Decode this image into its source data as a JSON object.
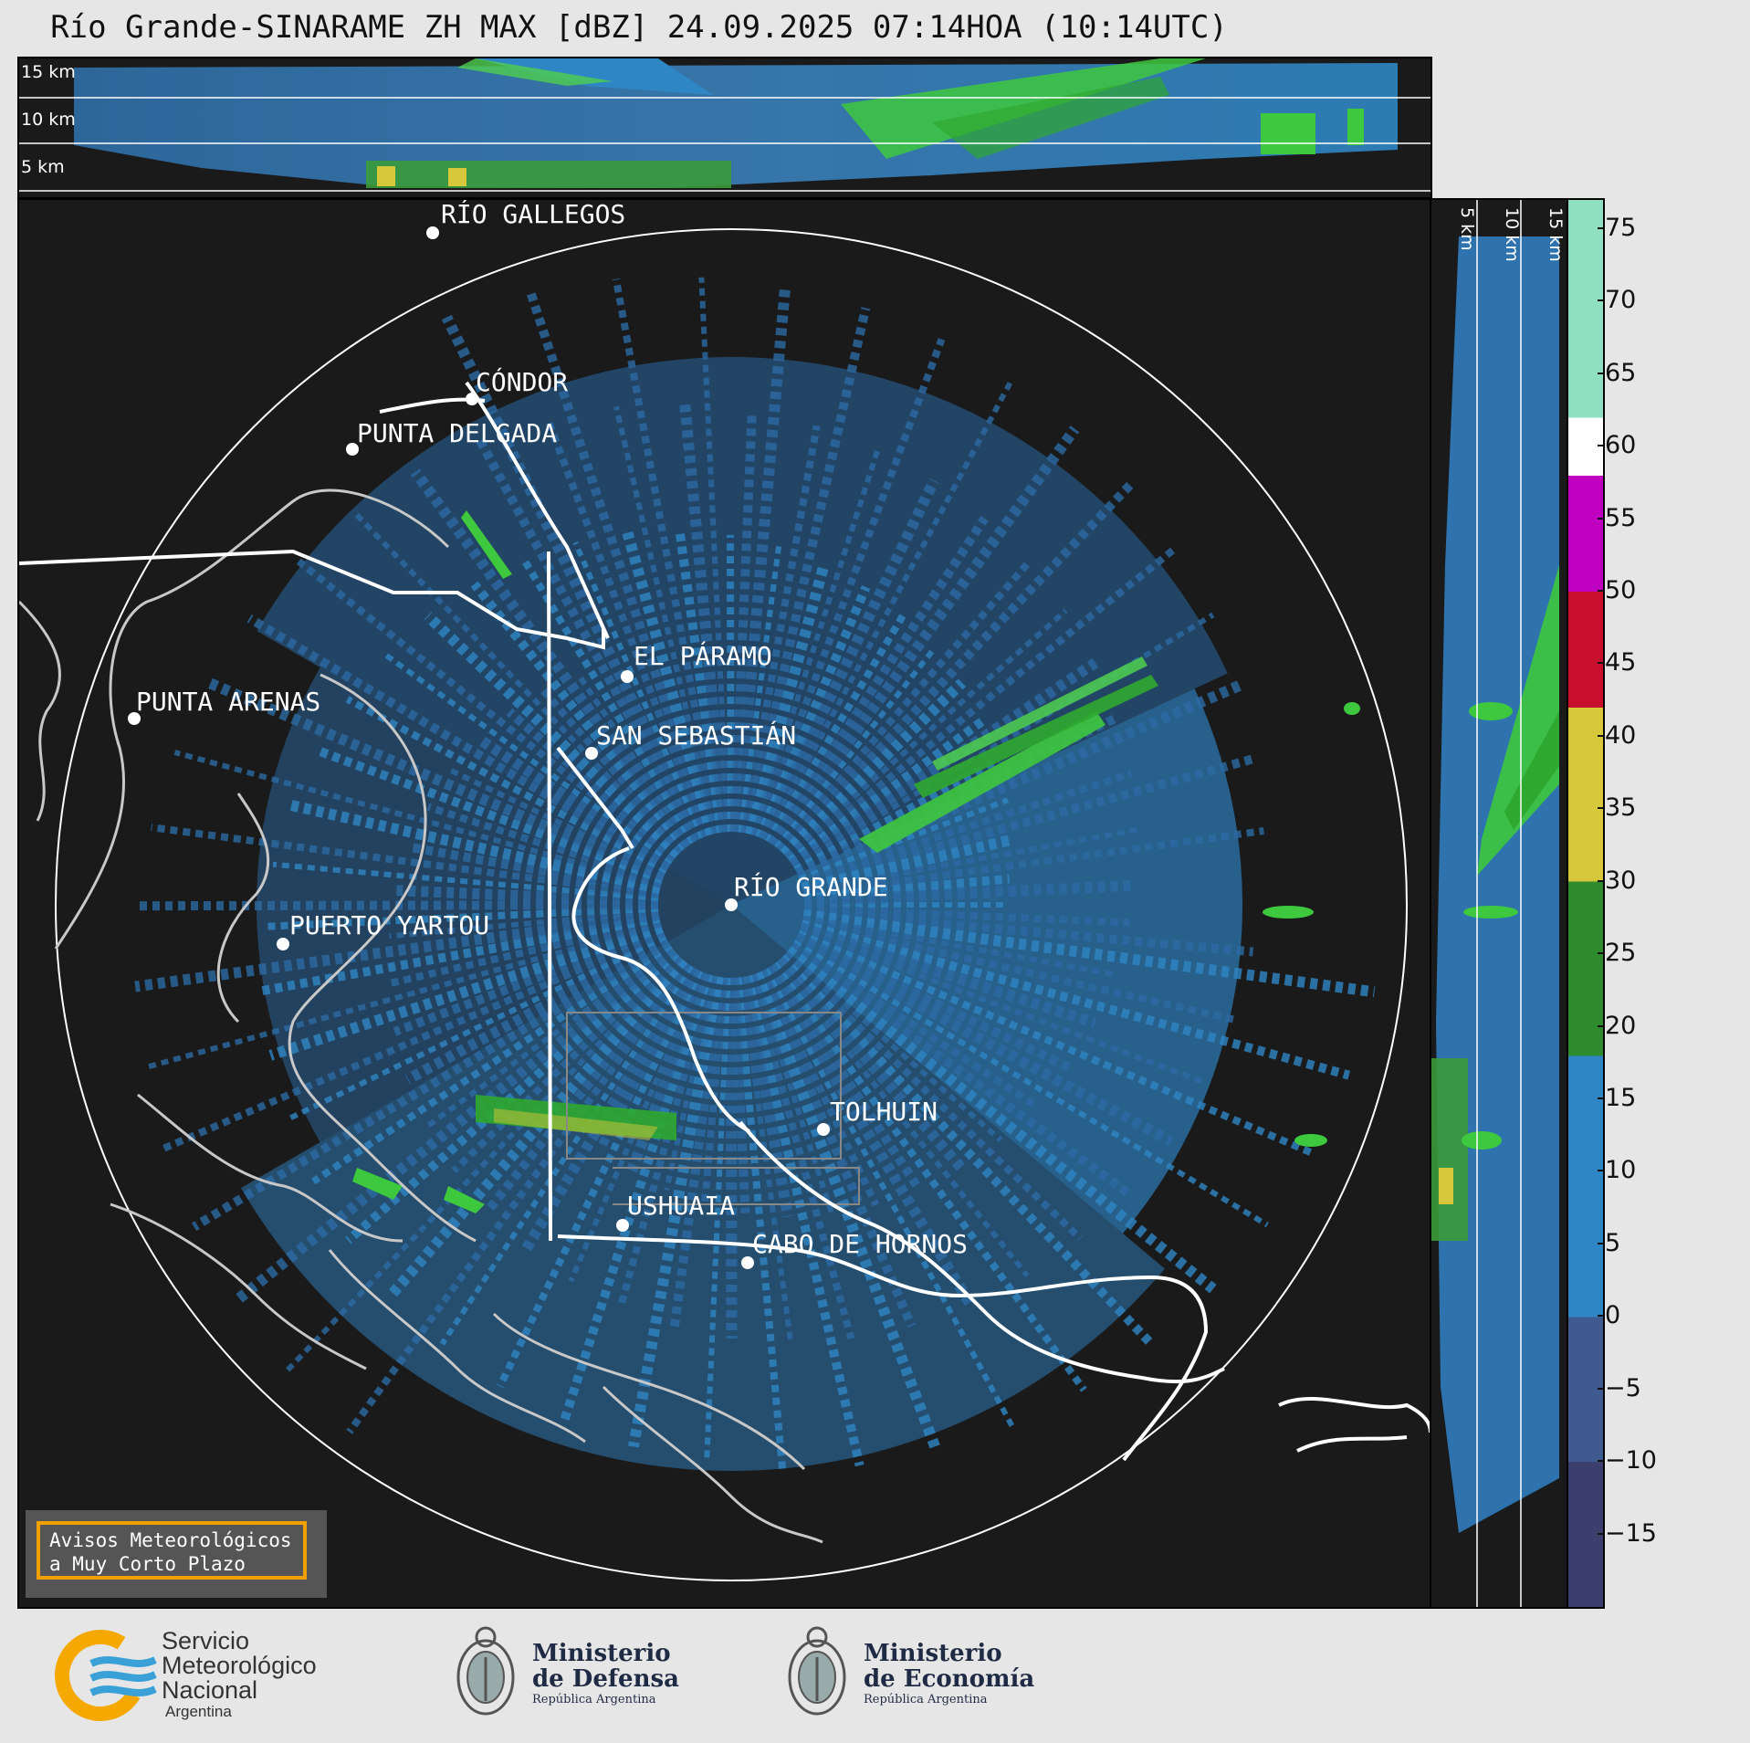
{
  "title": "Río Grande-SINARAME ZH MAX [dBZ] 24.09.2025 07:14HOA (10:14UTC)",
  "top_panel": {
    "altitudes": [
      "15 km",
      "10 km",
      "5 km"
    ]
  },
  "side_panel": {
    "altitudes": [
      "5 km",
      "10 km",
      "15 km"
    ]
  },
  "cities": [
    {
      "name": "RÍO GALLEGOS"
    },
    {
      "name": "CÓNDOR"
    },
    {
      "name": "PUNTA DELGADA"
    },
    {
      "name": "EL PÁRAMO"
    },
    {
      "name": "PUNTA ARENAS"
    },
    {
      "name": "SAN SEBASTIÁN"
    },
    {
      "name": "RÍO GRANDE"
    },
    {
      "name": "PUERTO YARTOU"
    },
    {
      "name": "TOLHUIN"
    },
    {
      "name": "USHUAIA"
    },
    {
      "name": "CABO DE HORNOS"
    }
  ],
  "colorbar": {
    "unit": "dBZ",
    "ticks": [
      "75",
      "70",
      "65",
      "60",
      "55",
      "50",
      "45",
      "40",
      "35",
      "30",
      "25",
      "20",
      "15",
      "10",
      "5",
      "0",
      "−5",
      "−10",
      "−15"
    ],
    "colors": {
      "below_minus10": "#3b3f6e",
      "minus10_0": "#3f5a8f",
      "0_18": "#2f86c4",
      "18_30": "#2e8b2e",
      "30_42": "#d6c83a",
      "42_50": "#c8102e",
      "50_58": "#c000c0",
      "58_62": "#ffffff",
      "62_77": "#8fe0c0"
    }
  },
  "notice": {
    "line1": "Avisos Meteorológicos",
    "line2": "a Muy Corto Plazo"
  },
  "logos": {
    "smn": {
      "line1": "Servicio",
      "line2": "Meteorológico",
      "line3": "Nacional",
      "line4": "Argentina"
    },
    "defensa": {
      "line1": "Ministerio",
      "line2": "de Defensa",
      "line3": "República Argentina"
    },
    "economia": {
      "line1": "Ministerio",
      "line2": "de Economía",
      "line3": "República Argentina"
    }
  }
}
